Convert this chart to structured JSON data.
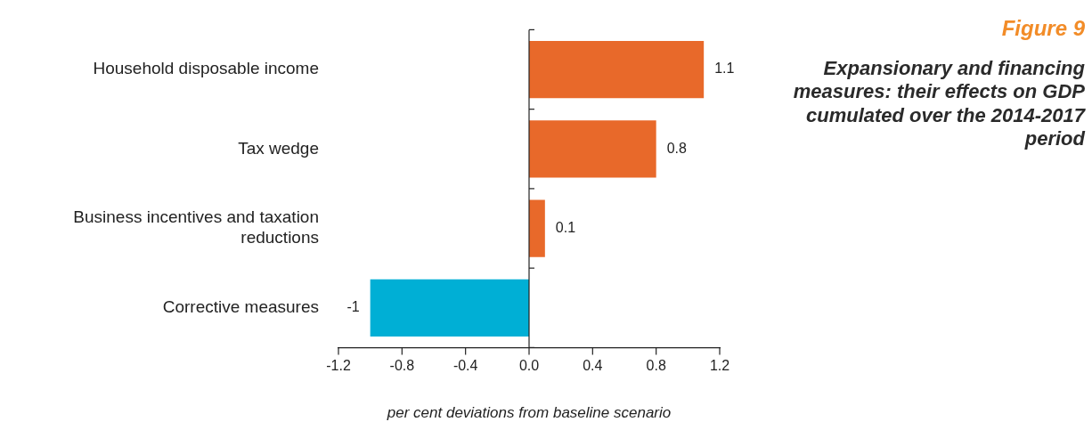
{
  "chart_data": {
    "type": "bar",
    "orientation": "horizontal",
    "title": "Figure 9",
    "subtitle": "Expansionary and financing measures: their effects on GDP cumulated over the 2014-2017 period",
    "xlabel": "per cent deviations from baseline scenario",
    "categories": [
      "Household disposable income",
      "Tax wedge",
      "Business incentives and taxation reductions",
      "Corrective measures"
    ],
    "values": [
      1.1,
      0.8,
      0.1,
      -1
    ],
    "data_labels": true,
    "colors": [
      "#e8692a",
      "#e8692a",
      "#e8692a",
      "#00afd5"
    ],
    "xlim": [
      -1.2,
      1.2
    ],
    "xticks": [
      {
        "value": -1.2,
        "label": "-1.2"
      },
      {
        "value": -0.8,
        "label": "-0.8"
      },
      {
        "value": -0.4,
        "label": "-0.4"
      },
      {
        "value": 0,
        "label": "0.0"
      },
      {
        "value": 0.4,
        "label": "0.4"
      },
      {
        "value": 0.8,
        "label": "0.8"
      },
      {
        "value": 1.2,
        "label": "1.2"
      }
    ],
    "ref_lines": [
      {
        "axis": "x",
        "value": 0,
        "color": "#222222"
      }
    ],
    "grid": false,
    "legend": false
  }
}
